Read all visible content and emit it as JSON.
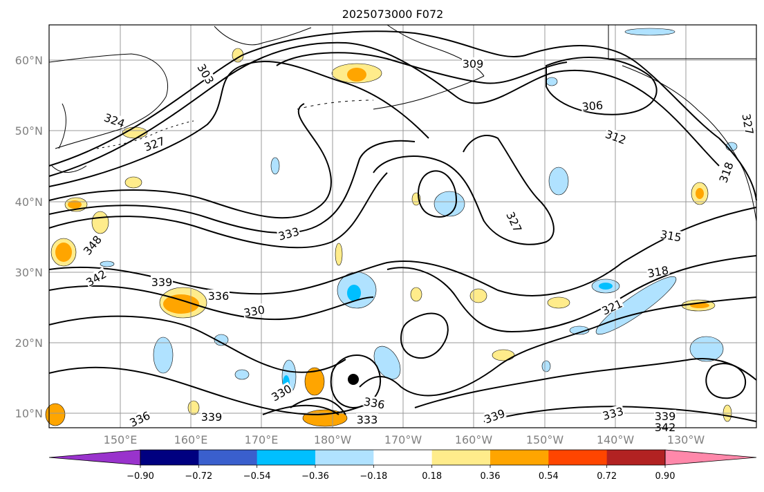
{
  "title": "2025073000 F072",
  "map": {
    "lat_labels": [
      "60°N",
      "50°N",
      "40°N",
      "30°N",
      "20°N",
      "10°N"
    ],
    "lon_labels": [
      "150°E",
      "160°E",
      "170°E",
      "180°W",
      "170°W",
      "160°W",
      "150°W",
      "140°W",
      "130°W"
    ],
    "contour_labels": [
      "303",
      "309",
      "306",
      "312",
      "324",
      "327",
      "327",
      "315",
      "318",
      "321",
      "333",
      "348",
      "342",
      "339",
      "336",
      "330",
      "330",
      "336",
      "333",
      "339",
      "336",
      "339",
      "333",
      "339",
      "342",
      "327",
      "318"
    ],
    "low_center_marker": "filled-dot"
  },
  "colorbar": {
    "colors": [
      "#9933cc",
      "#000080",
      "#3a5fcd",
      "#00bfff",
      "#b0e2ff",
      "#ffffff",
      "#ffec8b",
      "#ffa500",
      "#ff4500",
      "#b22222",
      "#ff88aa"
    ],
    "tick_labels": [
      "−0.90",
      "−0.72",
      "−0.54",
      "−0.36",
      "−0.18",
      "0.18",
      "0.36",
      "0.54",
      "0.72",
      "0.90"
    ]
  }
}
